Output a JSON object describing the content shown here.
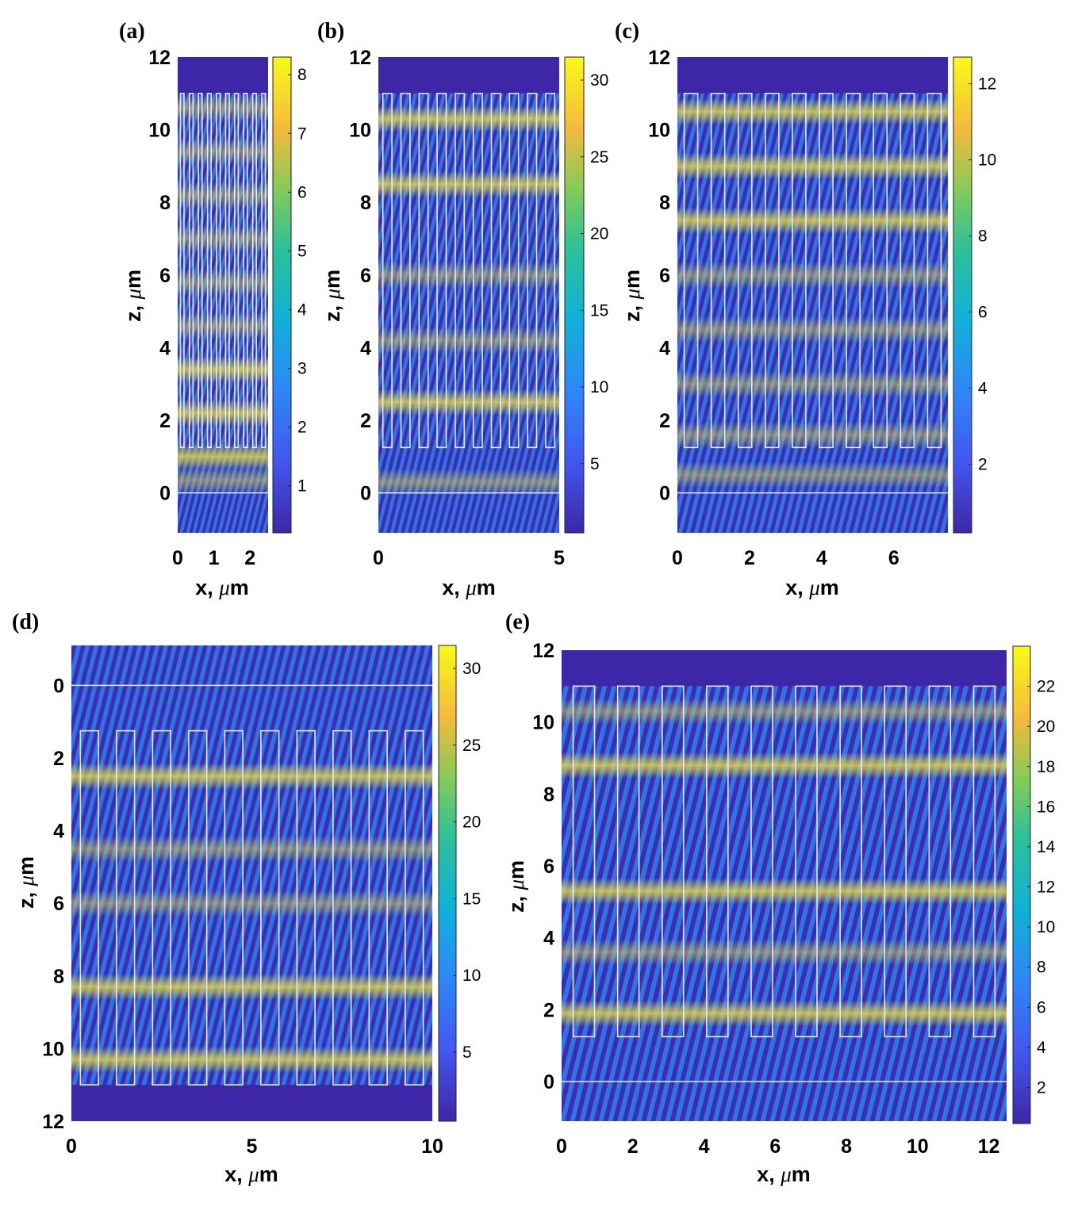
{
  "chart_data": [
    {
      "type": "heatmap",
      "panel": "(a)",
      "xlabel": "x, μm",
      "ylabel": "z, μm",
      "xlim": [
        0,
        2.5
      ],
      "ylim": [
        -1.1,
        12
      ],
      "xticks": [
        0,
        1,
        2
      ],
      "yticks": [
        0,
        2,
        4,
        6,
        8,
        10,
        12
      ],
      "y_reversed": false,
      "colorbar_range": [
        0.2,
        8.3
      ],
      "colorbar_ticks": [
        1,
        2,
        3,
        4,
        5,
        6,
        7,
        8
      ],
      "grating_top": 11,
      "grating_bottom": 1.25,
      "interface_z": 0,
      "period": 0.25,
      "ridge_width": 0.1,
      "ridge_count": 10
    },
    {
      "type": "heatmap",
      "panel": "(b)",
      "xlabel": "x, μm",
      "ylabel": "z, μm",
      "xlim": [
        0,
        5
      ],
      "ylim": [
        -1.1,
        12
      ],
      "xticks": [
        0,
        5
      ],
      "yticks": [
        0,
        2,
        4,
        6,
        8,
        10,
        12
      ],
      "y_reversed": false,
      "colorbar_range": [
        0.5,
        31.5
      ],
      "colorbar_ticks": [
        5,
        10,
        15,
        20,
        25,
        30
      ],
      "grating_top": 11,
      "grating_bottom": 1.25,
      "interface_z": 0,
      "period": 0.5,
      "ridge_width": 0.25,
      "ridge_count": 10
    },
    {
      "type": "heatmap",
      "panel": "(c)",
      "xlabel": "x, μm",
      "ylabel": "z, μm",
      "xlim": [
        0,
        7.5
      ],
      "ylim": [
        -1.1,
        12
      ],
      "xticks": [
        0,
        2,
        4,
        6
      ],
      "yticks": [
        0,
        2,
        4,
        6,
        8,
        10,
        12
      ],
      "y_reversed": false,
      "colorbar_range": [
        0.2,
        12.7
      ],
      "colorbar_ticks": [
        2,
        4,
        6,
        8,
        10,
        12
      ],
      "grating_top": 11,
      "grating_bottom": 1.25,
      "interface_z": 0,
      "period": 0.75,
      "ridge_width": 0.375,
      "ridge_count": 10
    },
    {
      "type": "heatmap",
      "panel": "(d)",
      "xlabel": "x, μm",
      "ylabel": "z, μm",
      "xlim": [
        0,
        10
      ],
      "ylim": [
        -1.1,
        12
      ],
      "xticks": [
        0,
        5,
        10
      ],
      "yticks": [
        0,
        2,
        4,
        6,
        8,
        10,
        12
      ],
      "y_reversed": true,
      "colorbar_range": [
        0.5,
        31.5
      ],
      "colorbar_ticks": [
        5,
        10,
        15,
        20,
        25,
        30
      ],
      "grating_top": 11,
      "grating_bottom": 1.25,
      "interface_z": 0,
      "period": 1.0,
      "ridge_width": 0.5,
      "ridge_count": 10
    },
    {
      "type": "heatmap",
      "panel": "(e)",
      "xlabel": "x, μm",
      "ylabel": "z, μm",
      "xlim": [
        0,
        12.5
      ],
      "ylim": [
        -1.1,
        12
      ],
      "xticks": [
        0,
        2,
        4,
        6,
        8,
        10,
        12
      ],
      "yticks": [
        0,
        2,
        4,
        6,
        8,
        10,
        12
      ],
      "y_reversed": false,
      "colorbar_range": [
        0.2,
        24
      ],
      "colorbar_ticks": [
        2,
        4,
        6,
        8,
        10,
        12,
        14,
        16,
        18,
        20,
        22
      ],
      "grating_top": 11,
      "grating_bottom": 1.25,
      "interface_z": 0,
      "period": 1.25,
      "ridge_width": 0.6,
      "ridge_count": 10
    }
  ],
  "colors": {
    "cmap_dark": "#3e26a8",
    "cmap_blue": "#2e87f7",
    "cmap_teal": "#10bfb9",
    "cmap_green": "#81cc59",
    "cmap_orange": "#f5ba3c",
    "cmap_yellow": "#f9fb15",
    "outline": "#e8e8f0"
  }
}
